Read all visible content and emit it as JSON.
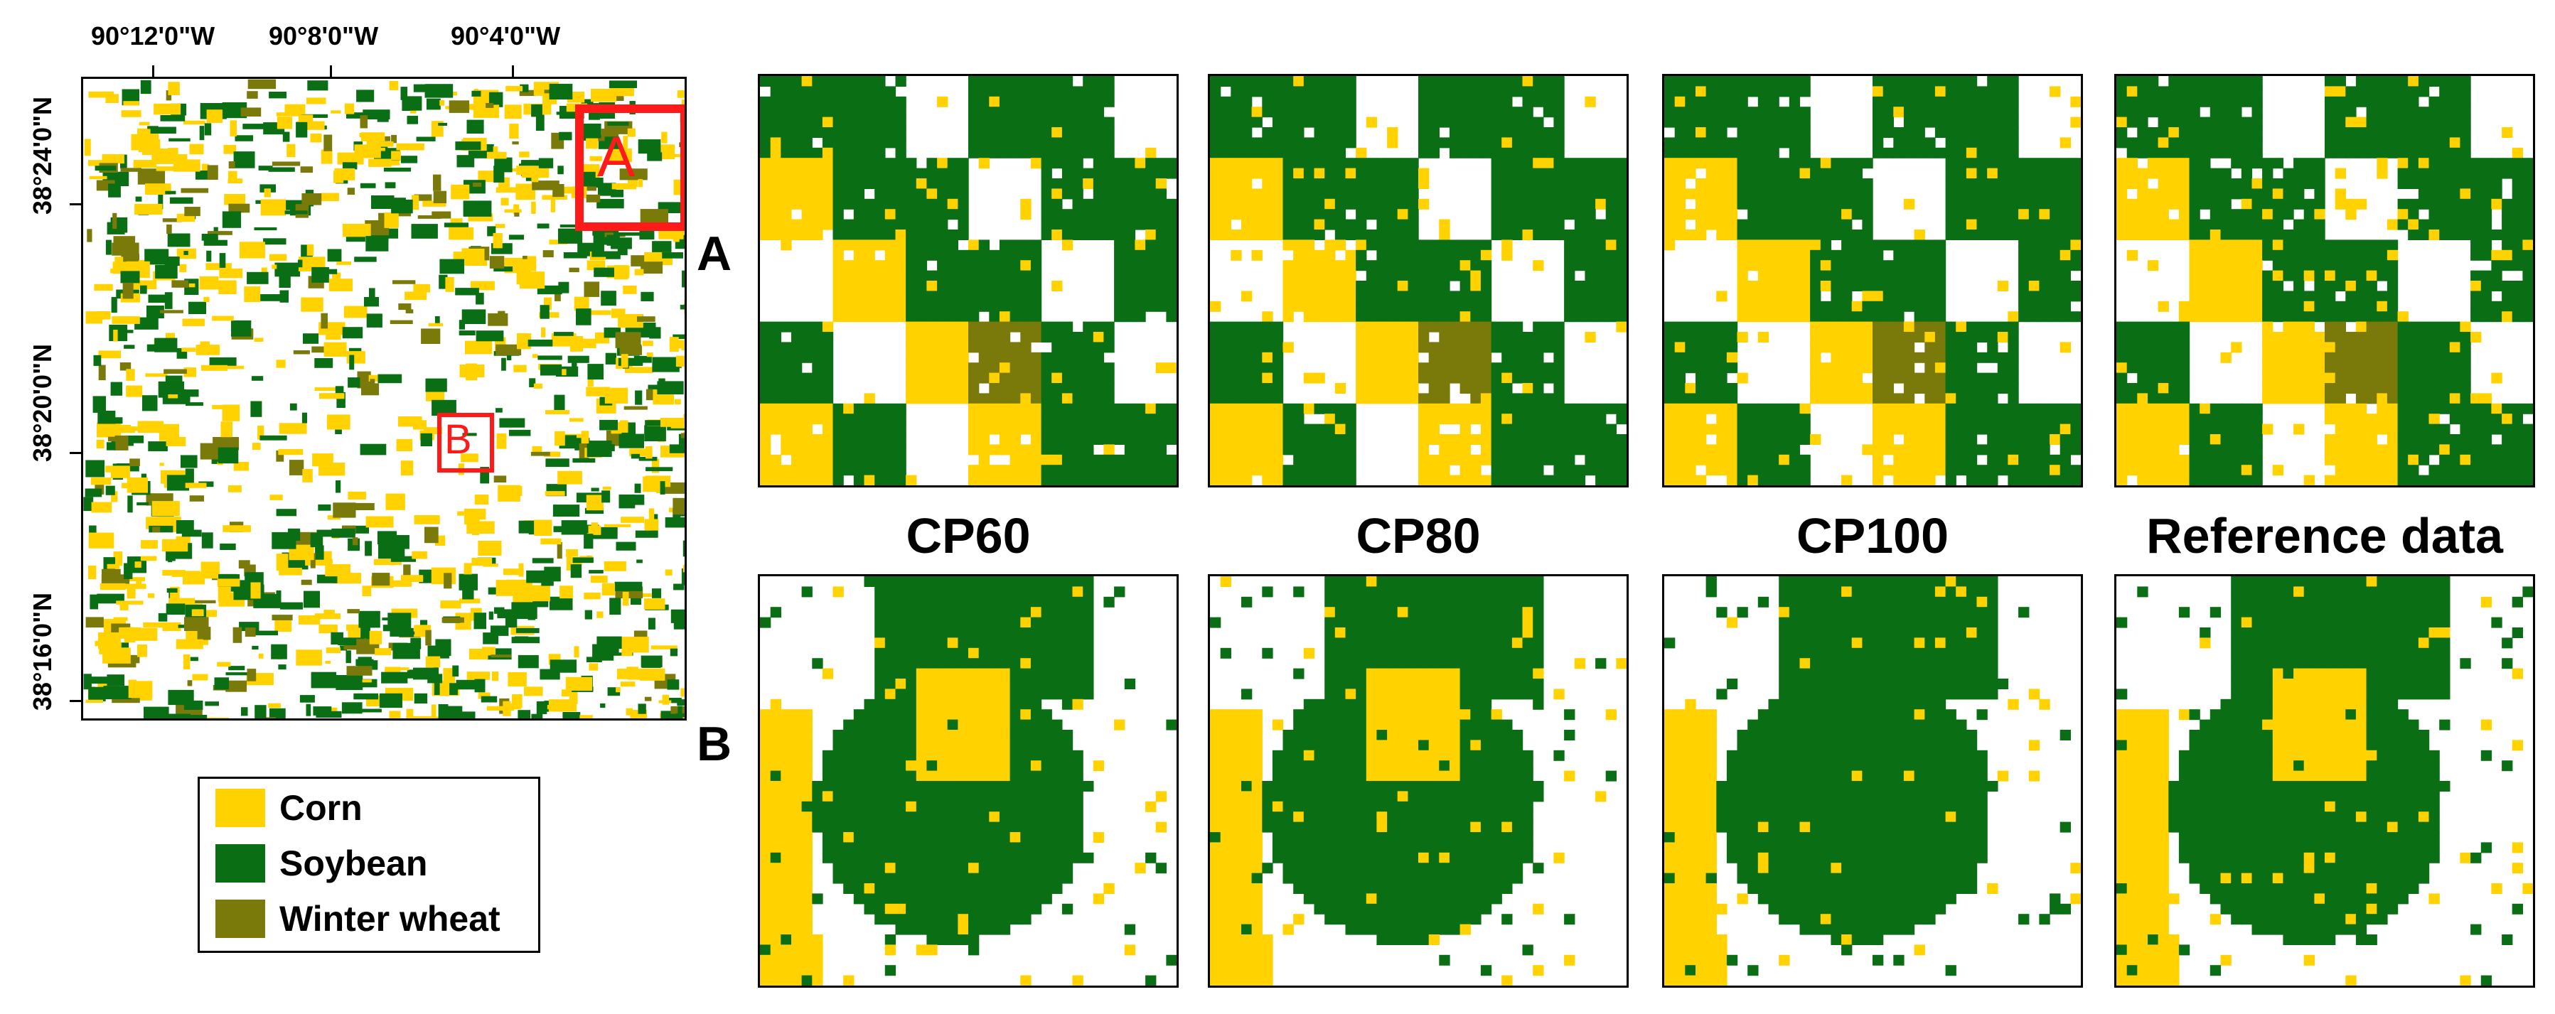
{
  "longitude_labels": [
    "90°12'0\"W",
    "90°8'0\"W",
    "90°4'0\"W"
  ],
  "latitude_labels": [
    "38°24'0\"N",
    "38°20'0\"N",
    "38°16'0\"N"
  ],
  "overview": {
    "box_a_label": "A",
    "box_b_label": "B",
    "box_color": "#ff1a1a"
  },
  "rows": [
    {
      "label": "A"
    },
    {
      "label": "B"
    }
  ],
  "columns": [
    {
      "title": "CP60"
    },
    {
      "title": "CP80"
    },
    {
      "title": "CP100"
    },
    {
      "title": "Reference data"
    }
  ],
  "legend": {
    "items": [
      {
        "label": "Corn",
        "color": "#ffd200"
      },
      {
        "label": "Soybean",
        "color": "#0a6e14"
      },
      {
        "label": "Winter wheat",
        "color": "#7a7a0a"
      }
    ]
  },
  "colors": {
    "corn": "#ffd200",
    "soybean": "#0a6e14",
    "winter_wheat": "#7a7a0a",
    "background": "#ffffff"
  }
}
